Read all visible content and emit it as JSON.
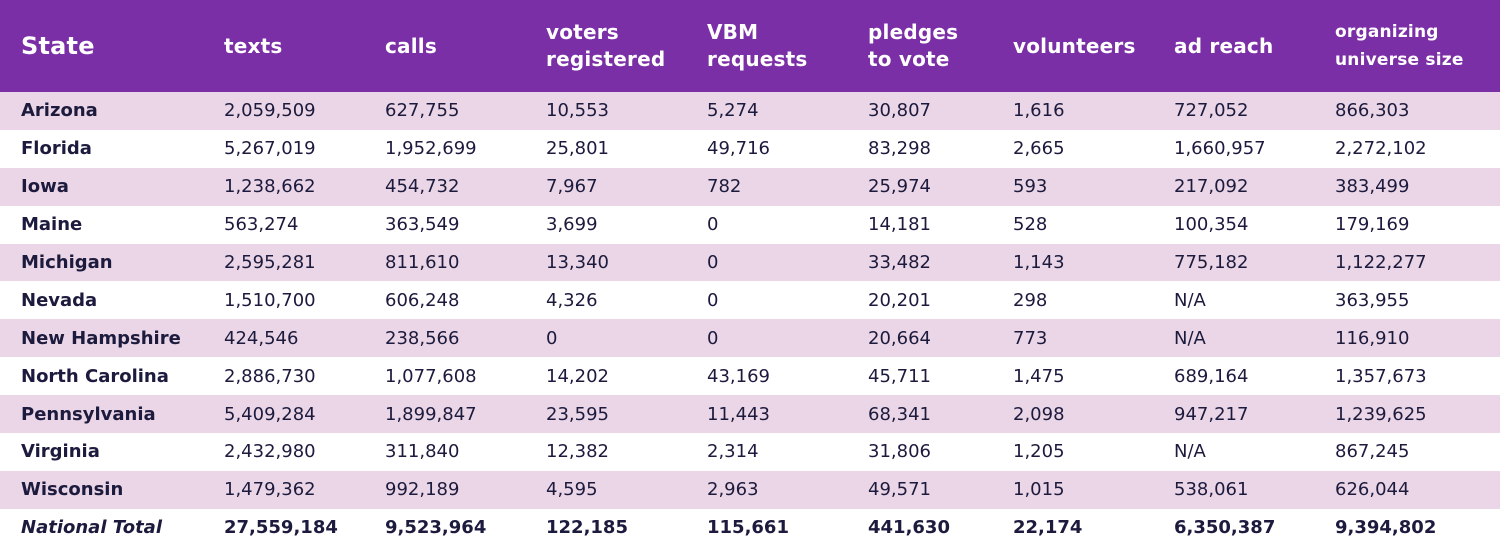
{
  "headers": [
    {
      "line1": "State",
      "line2": ""
    },
    {
      "line1": "texts",
      "line2": ""
    },
    {
      "line1": "calls",
      "line2": ""
    },
    {
      "line1": "voters",
      "line2": "registered"
    },
    {
      "line1": "VBM",
      "line2": "requests"
    },
    {
      "line1": "pledges",
      "line2": "to vote"
    },
    {
      "line1": "volunteers",
      "line2": ""
    },
    {
      "line1": "ad reach",
      "line2": ""
    },
    {
      "line1": "organizing",
      "line2": "universe size"
    }
  ],
  "rows": [
    {
      "state": "Arizona",
      "values": [
        "2,059,509",
        "627,755",
        "10,553",
        "5,274",
        "30,807",
        "1,616",
        "727,052",
        "866,303"
      ]
    },
    {
      "state": "Florida",
      "values": [
        "5,267,019",
        "1,952,699",
        "25,801",
        "49,716",
        "83,298",
        "2,665",
        "1,660,957",
        "2,272,102"
      ]
    },
    {
      "state": "Iowa",
      "values": [
        "1,238,662",
        "454,732",
        "7,967",
        "782",
        "25,974",
        "593",
        "217,092",
        "383,499"
      ]
    },
    {
      "state": "Maine",
      "values": [
        "563,274",
        "363,549",
        "3,699",
        "0",
        "14,181",
        "528",
        "100,354",
        "179,169"
      ]
    },
    {
      "state": "Michigan",
      "values": [
        "2,595,281",
        "811,610",
        "13,340",
        "0",
        "33,482",
        "1,143",
        "775,182",
        "1,122,277"
      ]
    },
    {
      "state": "Nevada",
      "values": [
        "1,510,700",
        "606,248",
        "4,326",
        "0",
        "20,201",
        "298",
        "N/A",
        "363,955"
      ]
    },
    {
      "state": "New Hampshire",
      "values": [
        "424,546",
        "238,566",
        "0",
        "0",
        "20,664",
        "773",
        "N/A",
        "116,910"
      ]
    },
    {
      "state": "North Carolina",
      "values": [
        "2,886,730",
        "1,077,608",
        "14,202",
        "43,169",
        "45,711",
        "1,475",
        "689,164",
        "1,357,673"
      ]
    },
    {
      "state": "Pennsylvania",
      "values": [
        "5,409,284",
        "1,899,847",
        "23,595",
        "11,443",
        "68,341",
        "2,098",
        "947,217",
        "1,239,625"
      ]
    },
    {
      "state": "Virginia",
      "values": [
        "2,432,980",
        "311,840",
        "12,382",
        "2,314",
        "31,806",
        "1,205",
        "N/A",
        "867,245"
      ]
    },
    {
      "state": "Wisconsin",
      "values": [
        "1,479,362",
        "992,189",
        "4,595",
        "2,963",
        "49,571",
        "1,015",
        "538,061",
        "626,044"
      ]
    }
  ],
  "total": {
    "state": "National Total",
    "values": [
      "27,559,184",
      "9,523,964",
      "122,185",
      "115,661",
      "441,630",
      "22,174",
      "6,350,387",
      "9,394,802"
    ]
  },
  "colors": {
    "header_bg": "#7b2fa6",
    "row_shade": "#ead6e6",
    "text": "#1c1a3d"
  }
}
